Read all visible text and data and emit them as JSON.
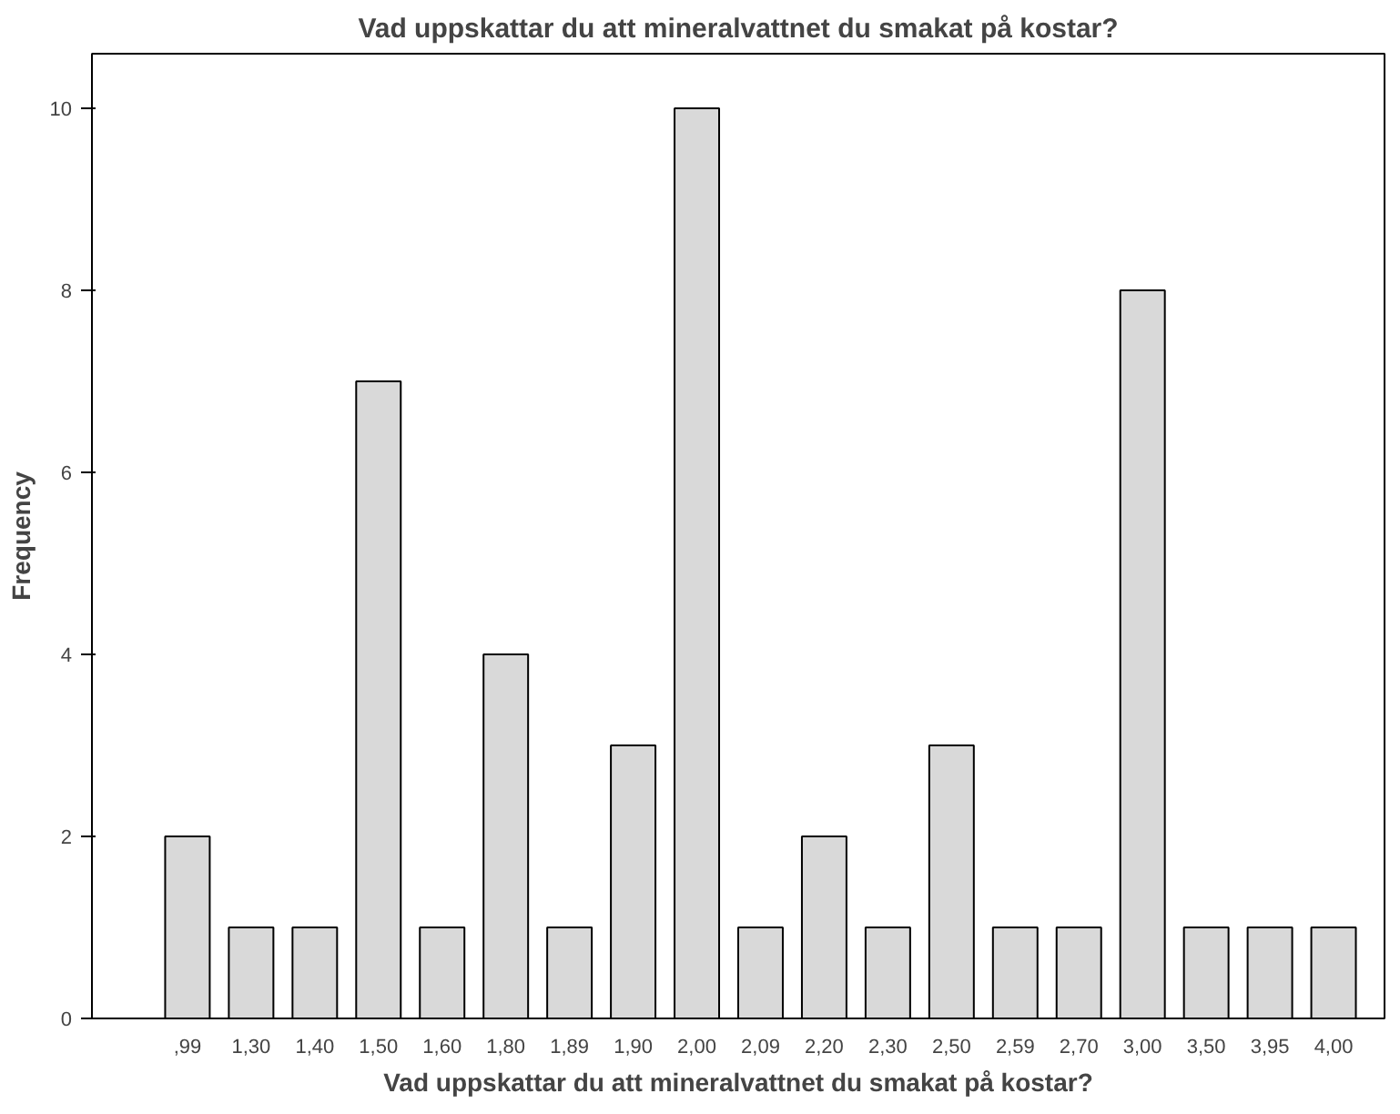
{
  "chart_data": {
    "type": "bar",
    "title": "Vad uppskattar du att mineralvattnet du smakat på kostar?",
    "xlabel": "Vad uppskattar du att mineralvattnet du smakat på kostar?",
    "ylabel": "Frequency",
    "categories": [
      ",99",
      "1,30",
      "1,40",
      "1,50",
      "1,60",
      "1,80",
      "1,89",
      "1,90",
      "2,00",
      "2,09",
      "2,20",
      "2,30",
      "2,50",
      "2,59",
      "2,70",
      "3,00",
      "3,50",
      "3,95",
      "4,00"
    ],
    "values": [
      2,
      1,
      1,
      7,
      1,
      4,
      1,
      3,
      10,
      1,
      2,
      1,
      3,
      1,
      1,
      8,
      1,
      1,
      1
    ],
    "color": "#d9d9d9",
    "ylim": [
      0,
      10.6
    ],
    "yticks": [
      0,
      2,
      4,
      6,
      8,
      10
    ],
    "grid": false
  }
}
